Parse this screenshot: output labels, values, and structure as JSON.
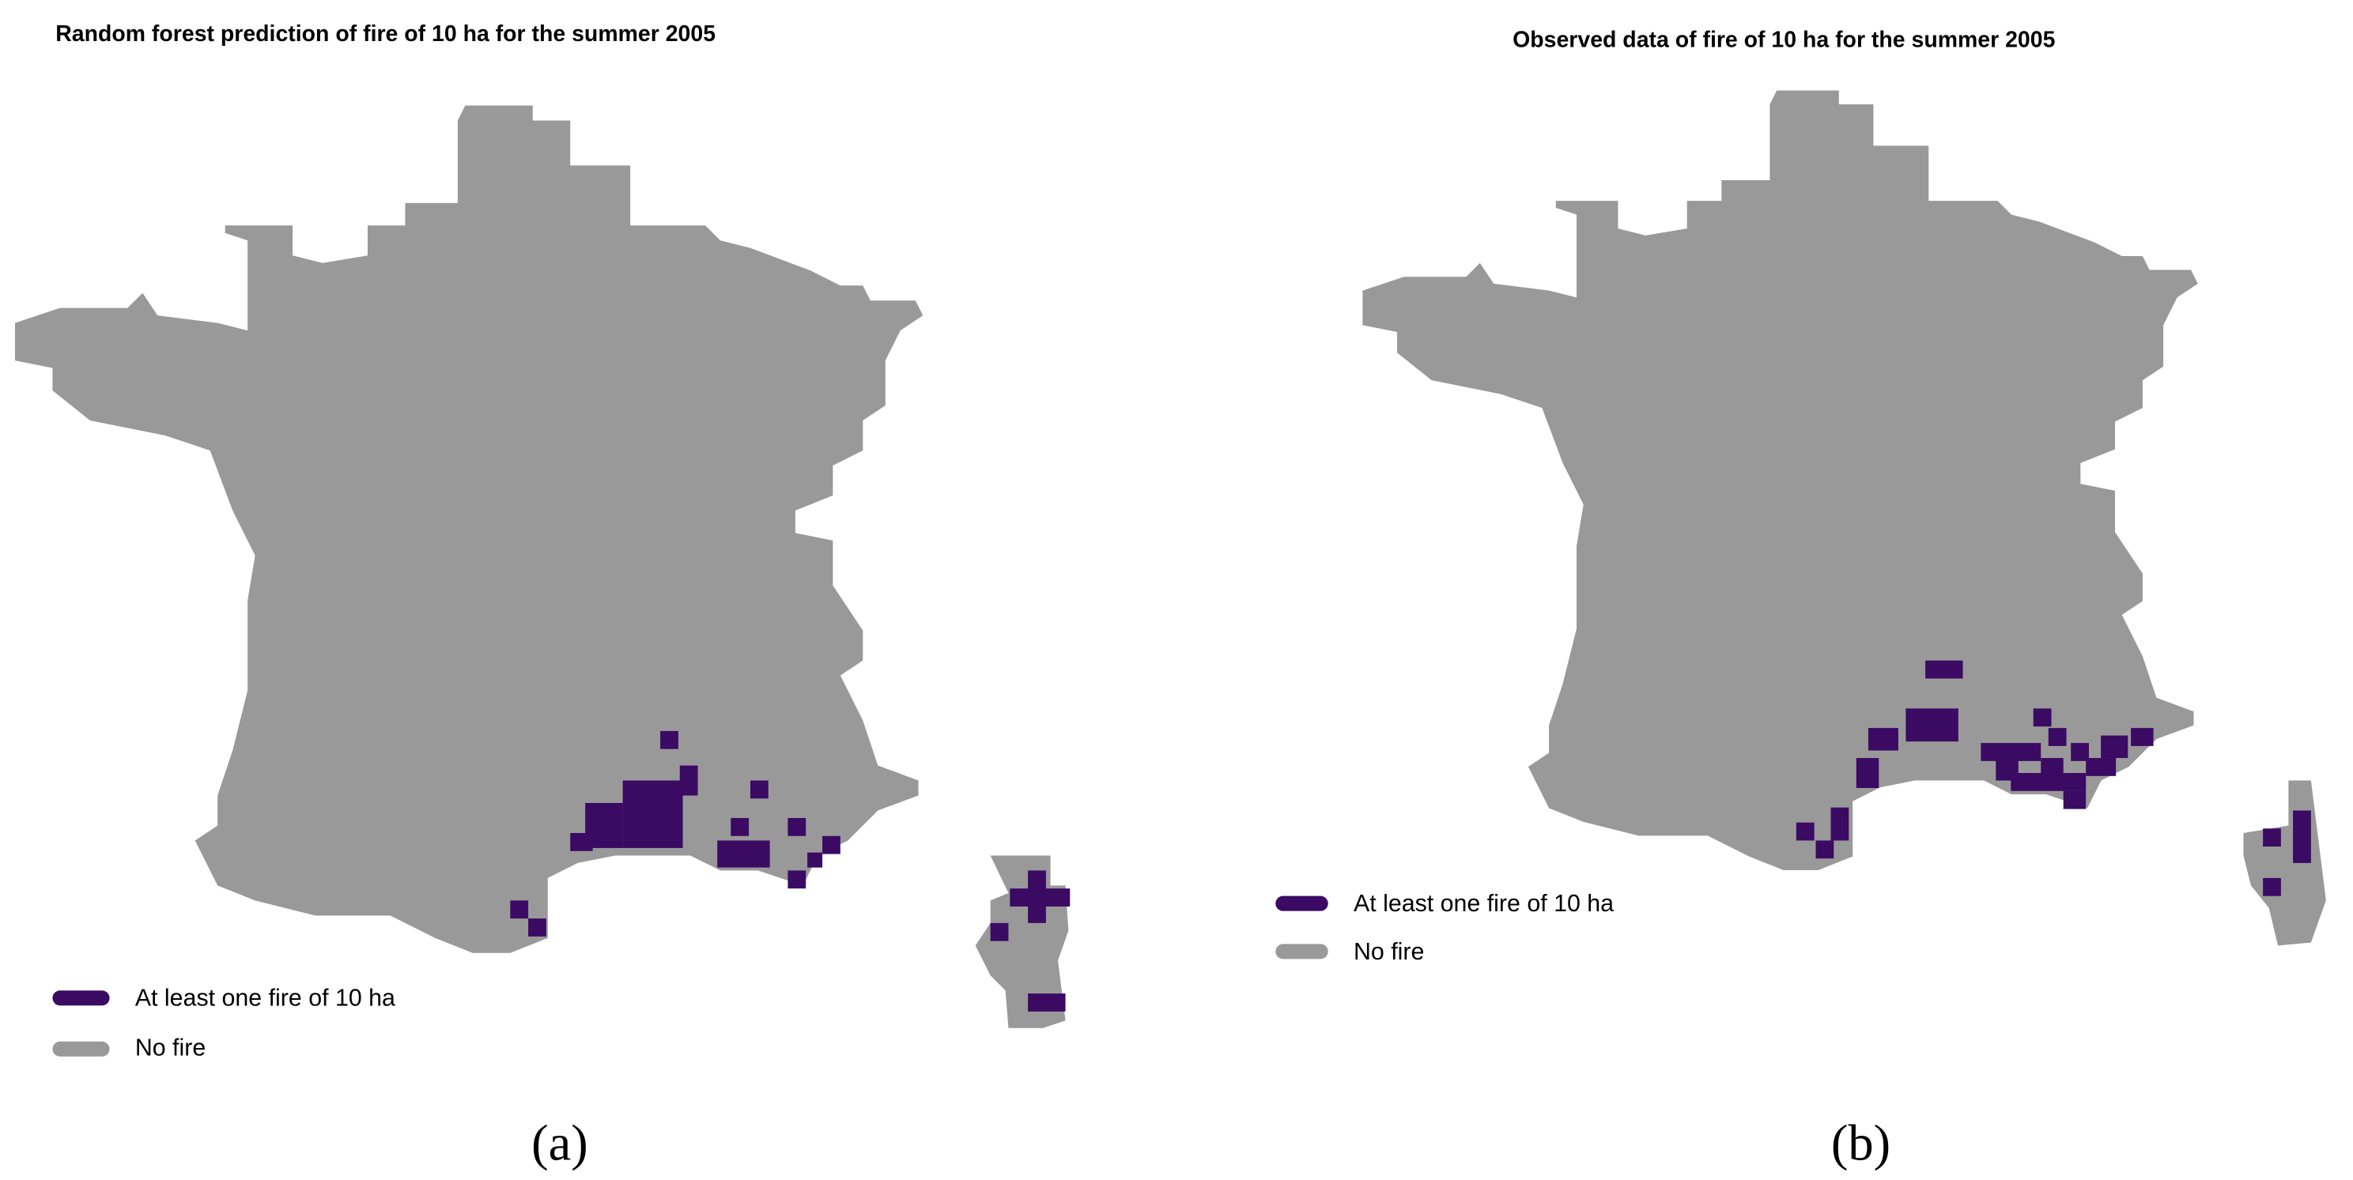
{
  "panels": [
    {
      "title": "Random forest prediction of fire of 10 ha for the summer 2005",
      "legend": [
        {
          "label": "At least one fire of 10 ha",
          "color": "#3b0a63"
        },
        {
          "label": "No fire",
          "color": "#999999"
        }
      ],
      "caption": "(a)"
    },
    {
      "title": "Observed data of fire of 10 ha for the summer 2005",
      "legend": [
        {
          "label": "At least one fire of 10 ha",
          "color": "#3b0a63"
        },
        {
          "label": "No fire",
          "color": "#999999"
        }
      ],
      "caption": "(b)"
    }
  ]
}
